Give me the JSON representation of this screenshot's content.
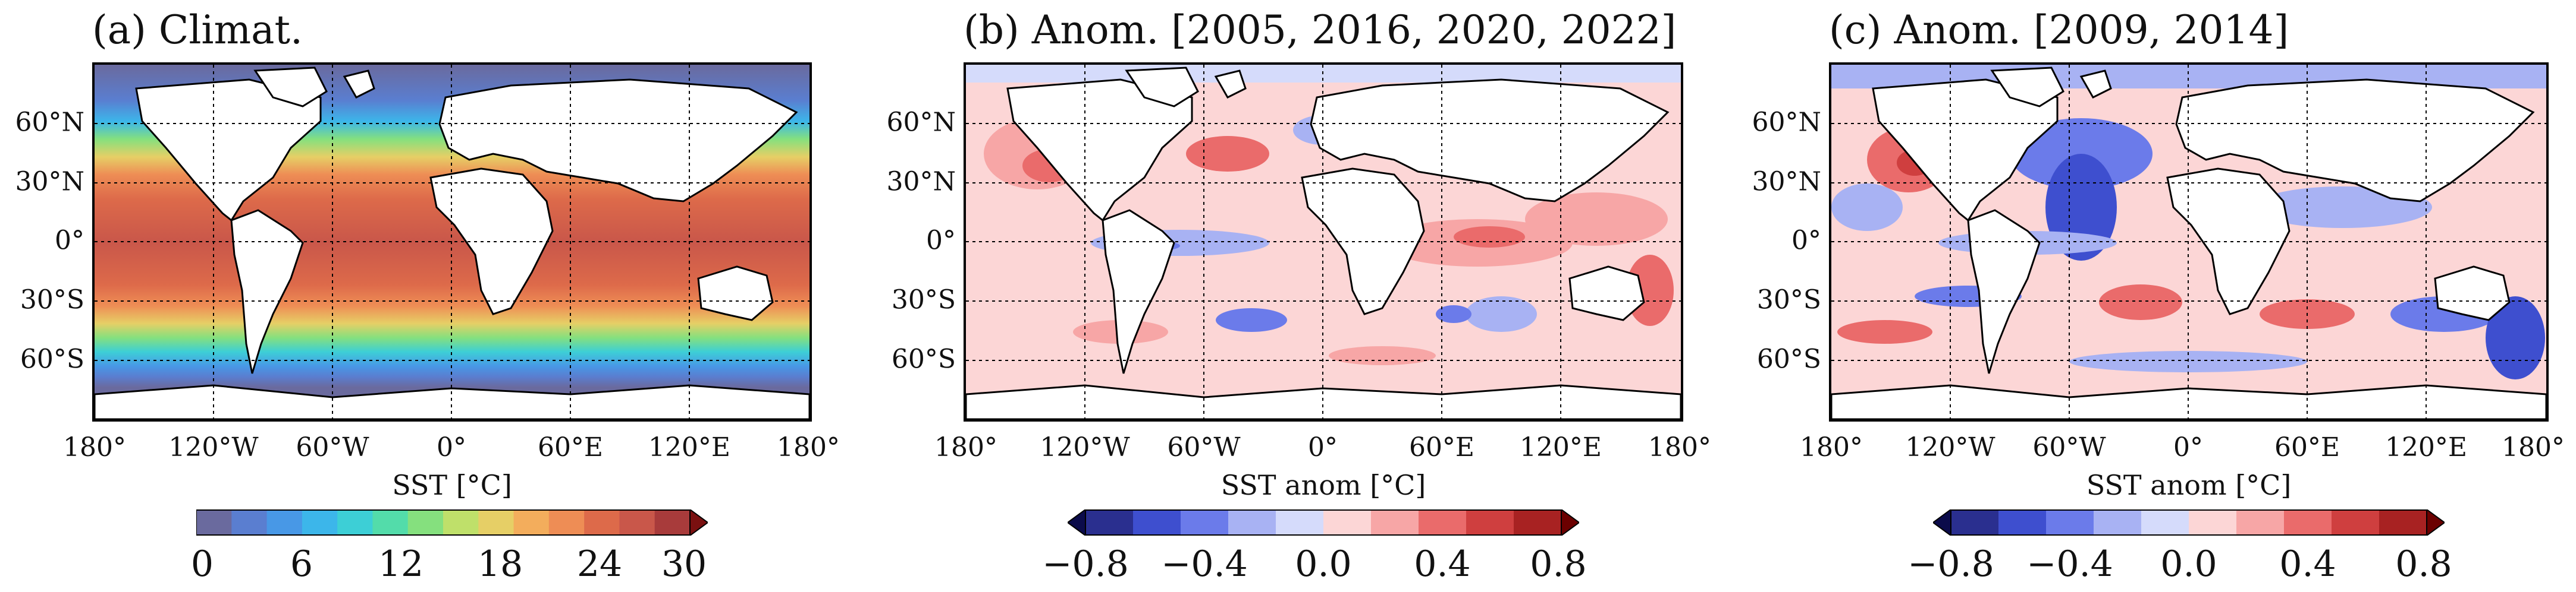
{
  "panels": [
    {
      "id": "a",
      "title": "(a) Climat.",
      "colorbar_label": "SST [°C]",
      "colorbar_ticks": [
        "0",
        "6",
        "12",
        "18",
        "24",
        "30"
      ],
      "colorbar_colors": [
        "#6a6a9e",
        "#5a7ed0",
        "#4898e6",
        "#3cb6ea",
        "#3dcfd6",
        "#53dcaa",
        "#85e07e",
        "#bfe06a",
        "#e6cf66",
        "#f3ad5c",
        "#ee8d55",
        "#dd6a4a",
        "#c9574a",
        "#a83b3b"
      ],
      "extend": "max"
    },
    {
      "id": "b",
      "title": "(b) Anom. [2005, 2016, 2020, 2022]",
      "colorbar_label": "SST anom [°C]",
      "colorbar_ticks": [
        "−0.8",
        "−0.4",
        "0.0",
        "0.4",
        "0.8"
      ],
      "colorbar_colors": [
        "#2a2f8f",
        "#3e4fcf",
        "#6b7bea",
        "#a8b2f3",
        "#d5dbfb",
        "#fcd6d6",
        "#f7a6a6",
        "#ea6b6b",
        "#cf3f3f",
        "#a82222"
      ],
      "extend": "both"
    },
    {
      "id": "c",
      "title": "(c) Anom. [2009, 2014]",
      "colorbar_label": "SST anom [°C]",
      "colorbar_ticks": [
        "−0.8",
        "−0.4",
        "0.0",
        "0.4",
        "0.8"
      ],
      "colorbar_colors": [
        "#2a2f8f",
        "#3e4fcf",
        "#6b7bea",
        "#a8b2f3",
        "#d5dbfb",
        "#fcd6d6",
        "#f7a6a6",
        "#ea6b6b",
        "#cf3f3f",
        "#a82222"
      ],
      "extend": "both"
    }
  ],
  "lat_labels": [
    "60°N",
    "30°N",
    "0°",
    "30°S",
    "60°S"
  ],
  "lon_labels": [
    "180°",
    "120°W",
    "60°W",
    "0°",
    "60°E",
    "120°E",
    "180°"
  ]
}
